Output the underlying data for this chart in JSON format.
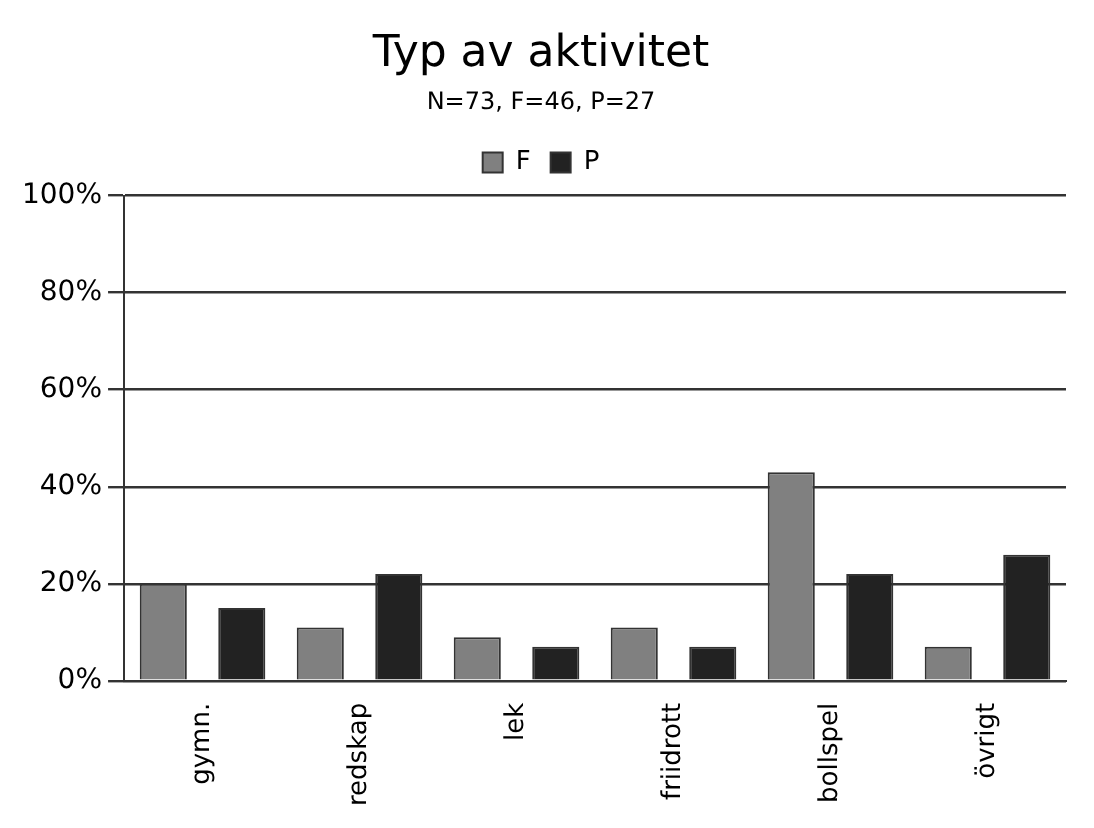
{
  "chart_data": {
    "type": "bar",
    "title": "Typ av aktivitet",
    "subtitle": "N=73, F=46, P=27",
    "categories": [
      "gymn.",
      "redskap",
      "lek",
      "friidrott",
      "bollspel",
      "övrigt"
    ],
    "series": [
      {
        "name": "F",
        "color": "#808080",
        "values": [
          20,
          11,
          9,
          11,
          43,
          7
        ]
      },
      {
        "name": "P",
        "color": "#222222",
        "values": [
          15,
          22,
          7,
          7,
          22,
          26
        ]
      }
    ],
    "ylim": [
      0,
      100
    ],
    "yticks": [
      {
        "value": 0,
        "label": "0%"
      },
      {
        "value": 20,
        "label": "20%"
      },
      {
        "value": 40,
        "label": "40%"
      },
      {
        "value": 60,
        "label": "60%"
      },
      {
        "value": 80,
        "label": "80%"
      },
      {
        "value": 100,
        "label": "100%"
      }
    ],
    "grid": "y",
    "legend": "top"
  }
}
